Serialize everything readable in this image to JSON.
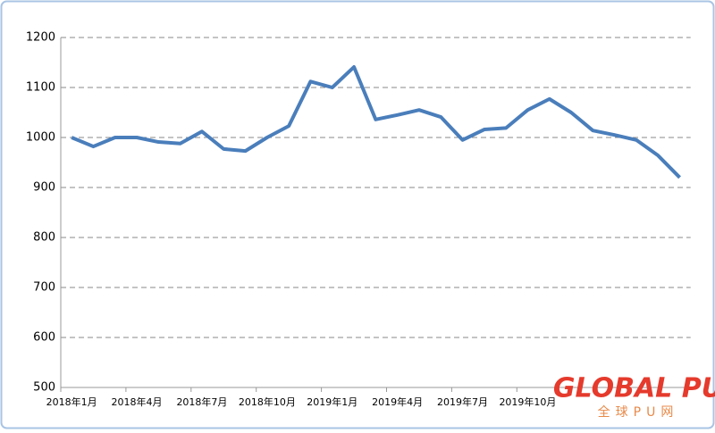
{
  "chart_data": {
    "type": "line",
    "categories": [
      "2018年1月",
      null,
      null,
      "2018年4月",
      null,
      null,
      "2018年7月",
      null,
      null,
      "2018年10月",
      null,
      null,
      "2019年1月",
      null,
      null,
      "2019年4月",
      null,
      null,
      "2019年7月",
      null,
      null,
      "2019年10月",
      null,
      null,
      null,
      null,
      null,
      null,
      null
    ],
    "series": [
      {
        "color": "#4a7ebb",
        "values": [
          1000,
          982,
          1000,
          1000,
          991,
          988,
          1012,
          977,
          973,
          1000,
          1023,
          1112,
          1100,
          1141,
          1036,
          1045,
          1055,
          1041,
          995,
          1016,
          1019,
          1055,
          1077,
          1050,
          1014,
          1005,
          995,
          964,
          920
        ]
      }
    ],
    "ylim": [
      500,
      1200
    ],
    "yticks": [
      500,
      600,
      700,
      800,
      900,
      1000,
      1100,
      1200
    ],
    "grid": true,
    "watermark": {
      "brand": "GLOBAL PU",
      "subtitle": "全球PU网"
    }
  }
}
